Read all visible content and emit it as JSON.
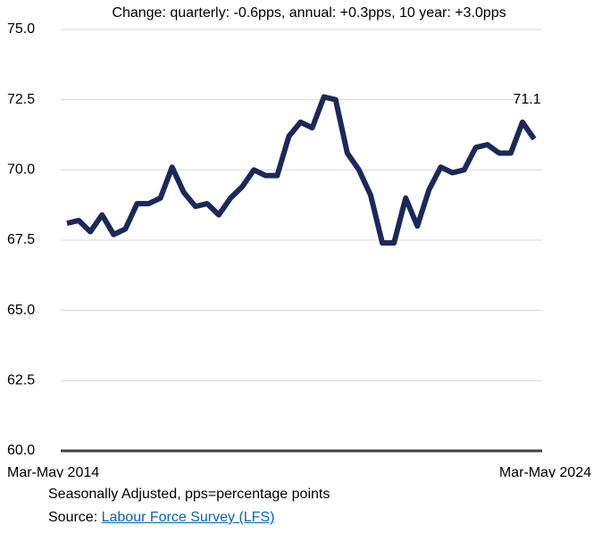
{
  "chart_data": {
    "type": "line",
    "title": "Change: quarterly: -0.6pps, annual: +0.3pps, 10 year: +3.0pps",
    "categories": [
      "Mar-May 2014",
      null,
      null,
      null,
      null,
      null,
      null,
      null,
      null,
      null,
      null,
      null,
      null,
      null,
      null,
      null,
      null,
      null,
      null,
      null,
      null,
      null,
      null,
      null,
      null,
      null,
      null,
      null,
      null,
      null,
      null,
      null,
      null,
      null,
      null,
      null,
      null,
      null,
      null,
      null,
      "Mar-May 2024"
    ],
    "series": [
      {
        "color": "#1c2858",
        "values": [
          68.1,
          68.2,
          67.8,
          68.4,
          67.7,
          67.9,
          68.8,
          68.8,
          69.0,
          70.1,
          69.2,
          68.7,
          68.8,
          68.4,
          69.0,
          69.4,
          70.0,
          69.8,
          69.8,
          71.2,
          71.7,
          71.5,
          72.6,
          72.5,
          70.6,
          70.0,
          69.1,
          67.4,
          67.4,
          69.0,
          68.0,
          69.3,
          70.1,
          69.9,
          70.0,
          70.8,
          70.9,
          70.6,
          70.6,
          71.7,
          71.1
        ]
      }
    ],
    "labeled_points": [
      40
    ],
    "ylim": [
      60,
      75
    ],
    "yticks": [
      {
        "value": 60,
        "label": "60.0"
      },
      {
        "value": 62.5,
        "label": "62.5"
      },
      {
        "value": 65,
        "label": "65.0"
      },
      {
        "value": 67.5,
        "label": "67.5"
      },
      {
        "value": 70,
        "label": "70.0"
      },
      {
        "value": 72.5,
        "label": "72.5"
      },
      {
        "value": 75,
        "label": "75.0"
      }
    ],
    "grid": true,
    "note": "Seasonally Adjusted, pps=percentage points",
    "source_prefix": "Source:",
    "source_link": "Labour Force Survey (LFS)"
  }
}
